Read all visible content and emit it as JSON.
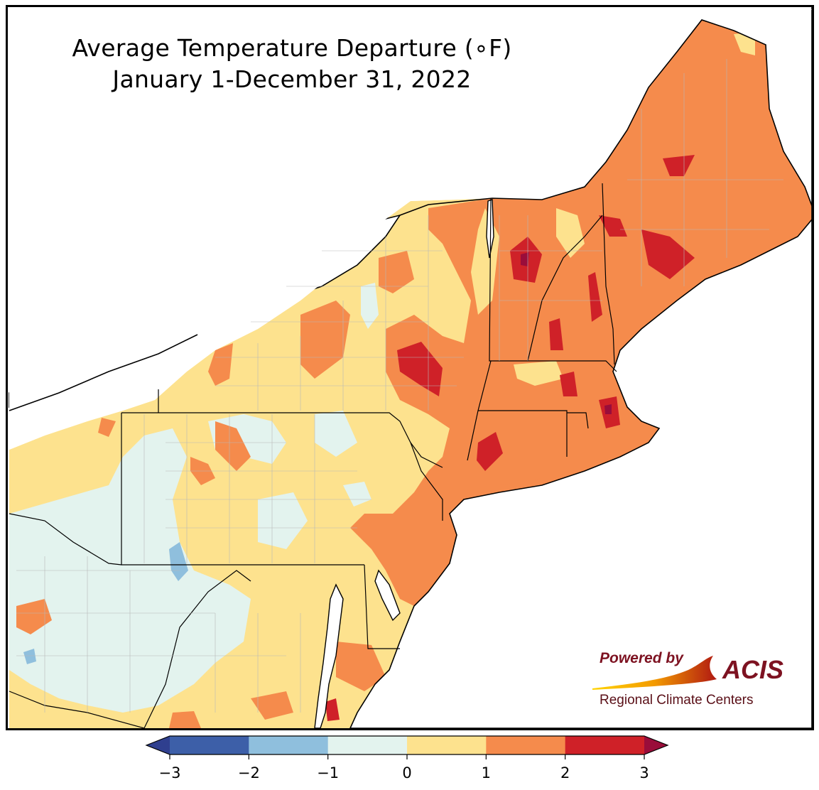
{
  "title": {
    "line1": "Average Temperature Departure (∘F)",
    "line2": "January 1-December 31, 2022"
  },
  "legend": {
    "ticks": [
      "−3",
      "−2",
      "−1",
      "0",
      "1",
      "2",
      "3"
    ],
    "bins": [
      {
        "range": "-3 to -2",
        "color": "#3d5fa8"
      },
      {
        "range": "-2 to -1",
        "color": "#8fbfdd"
      },
      {
        "range": "-1 to 0",
        "color": "#e3f3ee"
      },
      {
        "range": "0 to 1",
        "color": "#fde28e"
      },
      {
        "range": "1 to 2",
        "color": "#f58b4c"
      },
      {
        "range": "2 to 3",
        "color": "#cf2128"
      }
    ],
    "under_color": "#2f3f8f",
    "over_color": "#9a0d3a"
  },
  "logo": {
    "powered": "Powered by",
    "brand": "ACIS",
    "sub": "Regional Climate Centers"
  },
  "colors": {
    "water": "#ffffff",
    "border": "#000000",
    "county_line": "#b8b8b8"
  }
}
